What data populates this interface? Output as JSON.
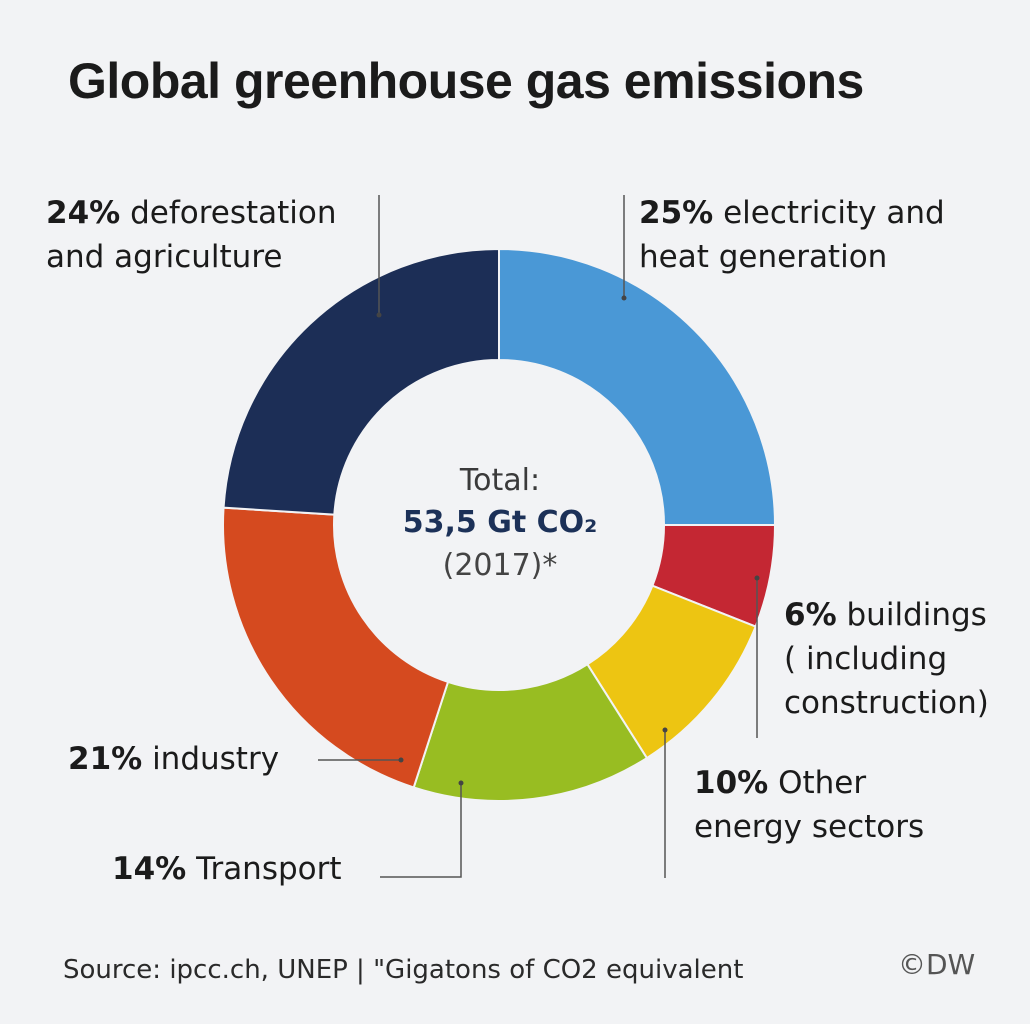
{
  "chart_data": {
    "type": "pie",
    "title": "Global greenhouse gas emissions",
    "donut": true,
    "start": "12 o'clock",
    "direction": "clockwise",
    "slices": [
      {
        "pct": "25%",
        "label_lines": [
          "electricity and",
          "heat generation"
        ],
        "value": 25,
        "color": "#4a98d6"
      },
      {
        "pct": "6%",
        "label_lines": [
          "buildings",
          "( including",
          "construction)"
        ],
        "value": 6,
        "color": "#c42733"
      },
      {
        "pct": "10%",
        "label_lines": [
          "Other",
          "energy sectors"
        ],
        "value": 10,
        "color": "#edc512"
      },
      {
        "pct": "14%",
        "label_lines": [
          "Transport"
        ],
        "value": 14,
        "color": "#98bd22"
      },
      {
        "pct": "21%",
        "label_lines": [
          "industry"
        ],
        "value": 21,
        "color": "#d54a1f"
      },
      {
        "pct": "24%",
        "label_lines": [
          "deforestation",
          "and agriculture"
        ],
        "value": 24,
        "color": "#1c2e56"
      }
    ],
    "center": {
      "label": "Total:",
      "value": "53,5 Gt CO₂",
      "year": "(2017)*"
    },
    "source": "Source: ipcc.ch, UNEP | \"Gigatons of CO2 equivalent",
    "credit": "©DW"
  }
}
